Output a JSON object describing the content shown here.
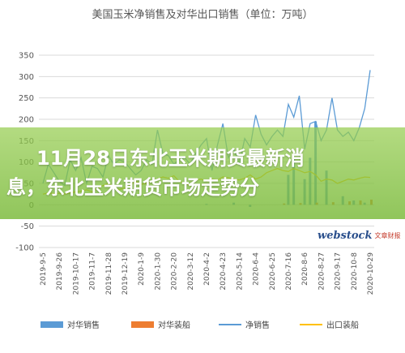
{
  "headline": {
    "line1": "11月28日东北玉米期货最新消",
    "line2": "息，东北玉米期货市场走势分"
  },
  "watermark": {
    "brand": "webstock",
    "sub": "文章财报"
  },
  "colors": {
    "bar": "#5b9bd5",
    "ship_bar": "#ed7d31",
    "net_sales": "#5b9bd5",
    "export_ship": "#ffc000"
  },
  "chart_data": {
    "type": "line",
    "title": "美国玉米净销售及对华出口销售（单位：万吨）",
    "xlabel": "",
    "ylabel": "",
    "ylim": [
      -100,
      350
    ],
    "yticks": [
      -100,
      -50,
      0,
      50,
      100,
      150,
      200,
      250,
      300,
      350
    ],
    "ytick_labels": [
      "-100",
      "-50",
      "0",
      "50",
      "100",
      "150",
      "200",
      "250",
      "300",
      "350"
    ],
    "grid": true,
    "legend_position": "bottom",
    "xtick_labels": [
      "2019-9-5",
      "2019-9-26",
      "2019-10-17",
      "2019-11-7",
      "2019-11-28",
      "2019-12-19",
      "2020-1-9",
      "2020-1-30",
      "2020-2-20",
      "2020-3-12",
      "2020-4-2",
      "2020-4-23",
      "2020-5-14",
      "2020-6-4",
      "2020-6-25",
      "2020-7-16",
      "2020-8-6",
      "2020-8-27",
      "2020-9-17",
      "2020-10-8",
      "2020-10-29"
    ],
    "x_count": 61,
    "series": [
      {
        "name": "对华销售",
        "kind": "bar",
        "points": [
          [
            30,
            2
          ],
          [
            35,
            5
          ],
          [
            38,
            -5
          ],
          [
            45,
            70
          ],
          [
            46,
            110
          ],
          [
            48,
            60
          ],
          [
            49,
            110
          ],
          [
            50,
            195
          ],
          [
            52,
            80
          ],
          [
            55,
            20
          ],
          [
            57,
            10
          ],
          [
            59,
            5
          ]
        ]
      },
      {
        "name": "对华装船",
        "kind": "bar",
        "points": [
          [
            44,
            3
          ],
          [
            47,
            4
          ],
          [
            50,
            5
          ],
          [
            53,
            6
          ],
          [
            56,
            8
          ],
          [
            58,
            10
          ],
          [
            60,
            12
          ]
        ]
      },
      {
        "name": "净销售",
        "kind": "line",
        "values": [
          50,
          95,
          75,
          55,
          45,
          105,
          80,
          110,
          50,
          90,
          85,
          65,
          115,
          95,
          105,
          100,
          85,
          70,
          80,
          105,
          95,
          175,
          120,
          115,
          95,
          105,
          110,
          95,
          120,
          140,
          155,
          80,
          140,
          190,
          110,
          130,
          95,
          155,
          135,
          210,
          165,
          140,
          160,
          175,
          160,
          235,
          205,
          255,
          130,
          190,
          195,
          150,
          175,
          250,
          175,
          160,
          170,
          150,
          180,
          225,
          315
        ]
      },
      {
        "name": "出口装船",
        "kind": "line",
        "values": [
          25,
          28,
          26,
          27,
          25,
          28,
          30,
          32,
          35,
          30,
          38,
          45,
          50,
          42,
          35,
          40,
          45,
          55,
          48,
          50,
          55,
          60,
          65,
          62,
          68,
          55,
          50,
          45,
          58,
          60,
          55,
          60,
          58,
          65,
          63,
          60,
          58,
          62,
          70,
          60,
          65,
          75,
          80,
          85,
          80,
          78,
          85,
          80,
          75,
          78,
          70,
          55,
          60,
          58,
          50,
          55,
          60,
          58,
          62,
          65,
          64
        ]
      }
    ]
  }
}
